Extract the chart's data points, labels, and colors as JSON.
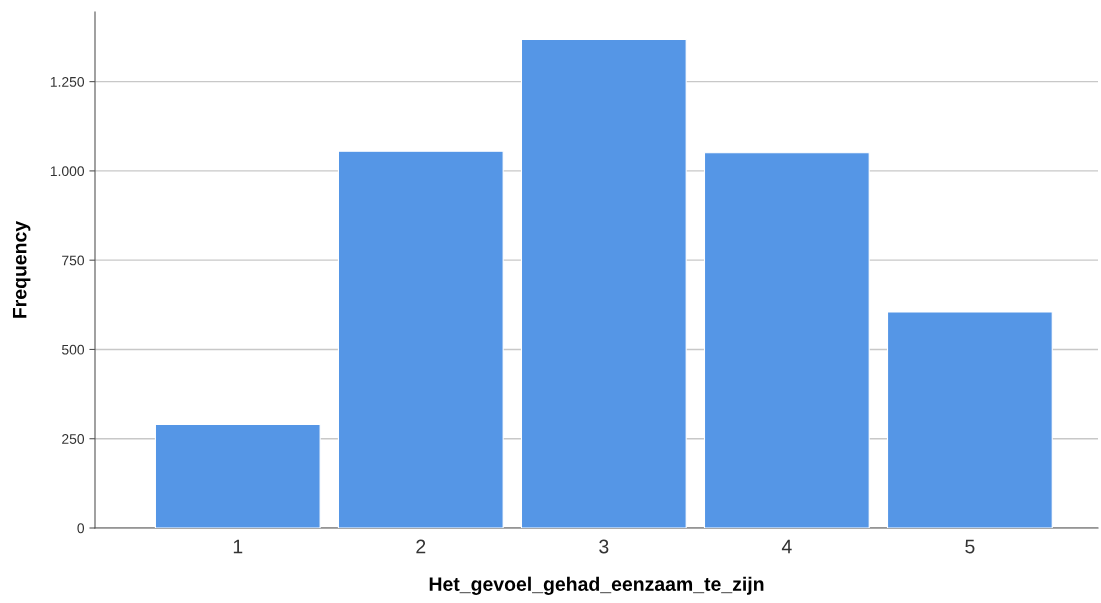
{
  "chart_data": {
    "type": "bar",
    "xlabel": "Het_gevoel_gehad_eenzaam_te_zijn",
    "ylabel": "Frequency",
    "categories": [
      "1",
      "2",
      "3",
      "4",
      "5"
    ],
    "values": [
      290,
      1055,
      1368,
      1051,
      605
    ],
    "color": "#5596e6",
    "ylim": [
      0,
      1445
    ],
    "yticks": [
      0,
      250,
      500,
      750,
      {
        "value": 1000,
        "label": "1.000"
      },
      {
        "value": 1250,
        "label": "1.250"
      }
    ],
    "grid": "y"
  }
}
